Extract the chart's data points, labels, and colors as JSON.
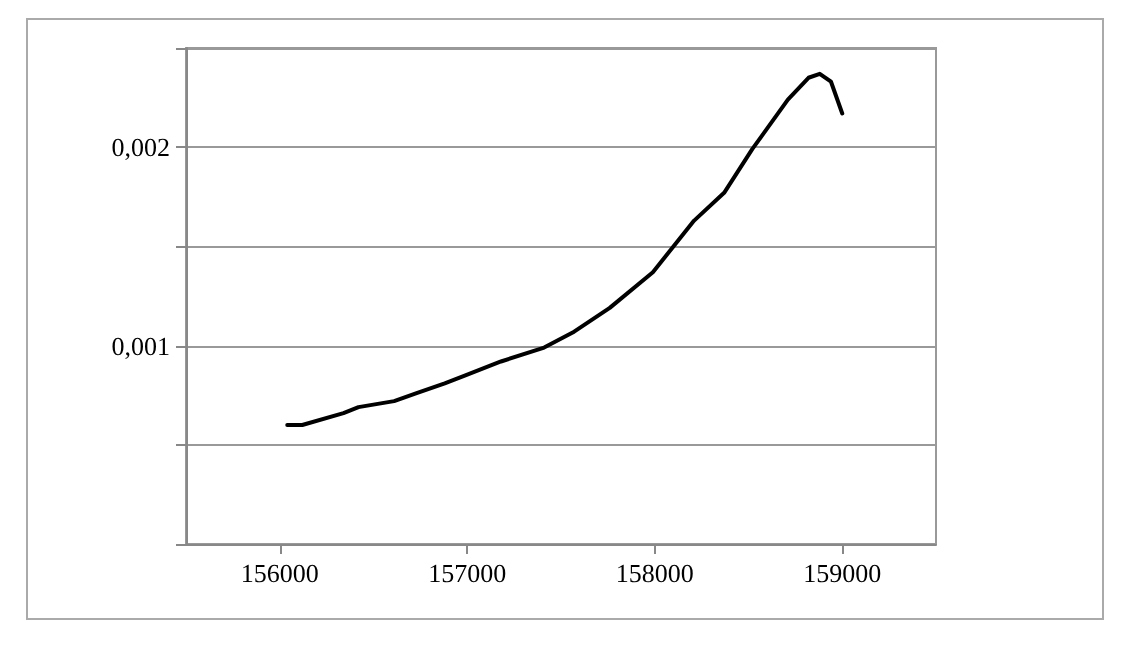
{
  "chart_data": {
    "type": "line",
    "x": [
      156040,
      156120,
      156340,
      156420,
      156610,
      156730,
      156880,
      156990,
      157180,
      157410,
      157570,
      157760,
      157990,
      158210,
      158370,
      158520,
      158710,
      158820,
      158880,
      158940,
      159000
    ],
    "series": [
      {
        "color": "#000000",
        "values": [
          0.0006,
          0.0006,
          0.00066,
          0.00069,
          0.00072,
          0.00076,
          0.00081,
          0.00085,
          0.00092,
          0.00099,
          0.00107,
          0.00119,
          0.00137,
          0.00163,
          0.00177,
          0.00199,
          0.00224,
          0.00235,
          0.00237,
          0.00233,
          0.00217
        ]
      }
    ],
    "xlim": [
      155500,
      159500
    ],
    "xticks": [
      156000,
      157000,
      158000,
      159000
    ],
    "ylim": [
      0,
      0.0025
    ],
    "yticks": [
      {
        "value": 0,
        "label": null
      },
      {
        "value": 0.0005,
        "label": null
      },
      {
        "value": 0.001,
        "label": "0,001"
      },
      {
        "value": 0.0015,
        "label": null
      },
      {
        "value": 0.002,
        "label": "0,002"
      },
      {
        "value": 0.0025,
        "label": null
      }
    ],
    "grid": "y",
    "marker": "none",
    "line_style": "solid"
  }
}
